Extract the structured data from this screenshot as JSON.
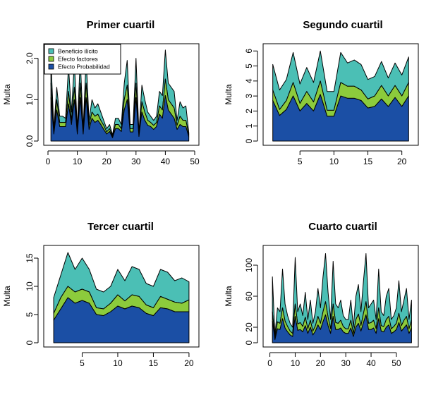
{
  "colors": {
    "beneficio": "#4BBFB5",
    "factores": "#8CCB3C",
    "probabilidad": "#1B4FA5",
    "axis": "#000000"
  },
  "legend": {
    "entries": [
      "Beneficio ilícito",
      "Efecto factores",
      "Efecto Probabilidad"
    ]
  },
  "chart_data": [
    {
      "type": "area",
      "stacked": true,
      "title": "Primer cuartil",
      "ylabel": "Multa",
      "xlabel": "",
      "xlim": [
        0,
        50
      ],
      "ylim": [
        0,
        2.25
      ],
      "xticks": [
        0,
        10,
        20,
        30,
        40,
        50
      ],
      "yticks": [
        0.0,
        1.0,
        2.0
      ],
      "ytick_labels": [
        "0.0",
        "1.0",
        "2.0"
      ],
      "legend_position": "top-left",
      "x": [
        1,
        2,
        3,
        4,
        5,
        6,
        7,
        8,
        9,
        10,
        11,
        12,
        13,
        14,
        15,
        16,
        17,
        18,
        19,
        20,
        21,
        22,
        23,
        24,
        25,
        26,
        27,
        28,
        29,
        30,
        31,
        32,
        33,
        34,
        35,
        36,
        37,
        38,
        39,
        40,
        41,
        42,
        43,
        44,
        45,
        46,
        47,
        48
      ],
      "totals": [
        2.0,
        0.3,
        1.3,
        0.6,
        0.6,
        0.55,
        1.8,
        0.7,
        1.9,
        0.3,
        2.0,
        0.3,
        2.0,
        0.5,
        1.0,
        0.8,
        0.9,
        0.7,
        0.5,
        0.3,
        0.4,
        0.15,
        0.55,
        0.55,
        0.4,
        1.4,
        1.95,
        0.4,
        0.4,
        2.0,
        0.2,
        1.35,
        1.0,
        0.7,
        0.6,
        0.5,
        0.6,
        1.2,
        1.1,
        2.2,
        1.4,
        1.3,
        1.2,
        0.5,
        0.95,
        0.8,
        0.85,
        0.2
      ],
      "series": [
        {
          "name": "Beneficio ilícito",
          "values": [
            0.6,
            0.08,
            0.3,
            0.15,
            0.15,
            0.1,
            0.6,
            0.2,
            0.6,
            0.08,
            0.6,
            0.08,
            0.6,
            0.12,
            0.3,
            0.2,
            0.25,
            0.2,
            0.12,
            0.08,
            0.1,
            0.04,
            0.15,
            0.15,
            0.1,
            0.4,
            0.6,
            0.1,
            0.1,
            0.6,
            0.05,
            0.4,
            0.3,
            0.2,
            0.15,
            0.12,
            0.15,
            0.35,
            0.35,
            0.7,
            0.4,
            0.4,
            0.4,
            0.12,
            0.35,
            0.3,
            0.35,
            0.05
          ]
        },
        {
          "name": "Efecto factores",
          "values": [
            0.35,
            0.05,
            0.25,
            0.1,
            0.1,
            0.1,
            0.3,
            0.1,
            0.3,
            0.05,
            0.35,
            0.05,
            0.35,
            0.1,
            0.15,
            0.15,
            0.15,
            0.1,
            0.1,
            0.05,
            0.07,
            0.03,
            0.1,
            0.1,
            0.07,
            0.25,
            0.35,
            0.08,
            0.08,
            0.35,
            0.04,
            0.25,
            0.2,
            0.12,
            0.1,
            0.1,
            0.1,
            0.2,
            0.2,
            0.4,
            0.25,
            0.25,
            0.25,
            0.1,
            0.2,
            0.15,
            0.15,
            0.05
          ]
        },
        {
          "name": "Efecto Probabilidad",
          "values": [
            1.05,
            0.17,
            0.75,
            0.35,
            0.35,
            0.35,
            0.9,
            0.4,
            1.0,
            0.17,
            1.05,
            0.17,
            1.05,
            0.28,
            0.55,
            0.45,
            0.5,
            0.4,
            0.28,
            0.17,
            0.23,
            0.08,
            0.3,
            0.3,
            0.23,
            0.75,
            1.0,
            0.22,
            0.22,
            1.05,
            0.11,
            0.7,
            0.5,
            0.38,
            0.35,
            0.28,
            0.35,
            0.65,
            0.55,
            1.1,
            0.75,
            0.65,
            0.55,
            0.28,
            0.4,
            0.35,
            0.35,
            0.1
          ]
        }
      ]
    },
    {
      "type": "area",
      "stacked": true,
      "title": "Segundo cuartil",
      "ylabel": "Multa",
      "xlabel": "",
      "xlim": [
        0.2,
        21.8
      ],
      "ylim": [
        0,
        6.2
      ],
      "xticks": [
        5,
        10,
        15,
        20
      ],
      "yticks": [
        0,
        1,
        2,
        3,
        4,
        5,
        6
      ],
      "ytick_labels": [
        "0",
        "1",
        "2",
        "3",
        "4",
        "5",
        "6"
      ],
      "x": [
        1,
        2,
        3,
        4,
        5,
        6,
        7,
        8,
        9,
        10,
        11,
        12,
        13,
        14,
        15,
        16,
        17,
        18,
        19,
        20,
        21
      ],
      "totals": [
        5.1,
        3.4,
        4.1,
        5.9,
        3.8,
        4.9,
        3.9,
        6.0,
        3.3,
        3.3,
        5.9,
        5.2,
        5.4,
        5.1,
        4.1,
        4.3,
        5.3,
        4.2,
        5.2,
        4.4,
        5.6
      ],
      "series": [
        {
          "name": "Beneficio ilícito",
          "values": [
            1.7,
            1.3,
            1.4,
            2.0,
            1.3,
            1.6,
            1.3,
            2.0,
            1.25,
            1.25,
            2.0,
            1.55,
            1.75,
            1.7,
            1.3,
            1.3,
            1.6,
            1.2,
            1.5,
            1.4,
            1.7
          ]
        },
        {
          "name": "Efecto factores",
          "values": [
            0.7,
            0.4,
            0.6,
            0.9,
            0.5,
            0.8,
            0.6,
            0.9,
            0.4,
            0.4,
            0.9,
            0.8,
            0.8,
            0.7,
            0.6,
            0.7,
            0.9,
            0.7,
            0.8,
            0.7,
            0.9
          ]
        },
        {
          "name": "Efecto Probabilidad",
          "values": [
            2.7,
            1.7,
            2.1,
            3.0,
            2.0,
            2.5,
            2.0,
            3.1,
            1.65,
            1.65,
            3.0,
            2.85,
            2.85,
            2.7,
            2.2,
            2.3,
            2.8,
            2.3,
            2.9,
            2.3,
            3.0
          ]
        }
      ]
    },
    {
      "type": "area",
      "stacked": true,
      "title": "Tercer cuartil",
      "ylabel": "Multa",
      "xlabel": "",
      "xlim": [
        0.2,
        20.8
      ],
      "ylim": [
        0,
        16.5
      ],
      "xticks": [
        5,
        10,
        15,
        20
      ],
      "yticks": [
        0,
        5,
        10,
        15
      ],
      "ytick_labels": [
        "0",
        "5",
        "10",
        "15"
      ],
      "x": [
        1,
        2,
        3,
        4,
        5,
        6,
        7,
        8,
        9,
        10,
        11,
        12,
        13,
        14,
        15,
        16,
        17,
        18,
        19,
        20
      ],
      "totals": [
        8.0,
        12.0,
        16.0,
        13.0,
        15.0,
        13.0,
        9.5,
        9.0,
        10.0,
        13.0,
        11.0,
        13.5,
        13.0,
        10.5,
        10.0,
        13.0,
        12.5,
        11.0,
        11.5,
        10.8
      ],
      "series": [
        {
          "name": "Beneficio ilícito",
          "values": [
            2.8,
            4.0,
            6.0,
            4.0,
            5.5,
            3.5,
            3.3,
            3.0,
            3.0,
            5.0,
            3.6,
            5.0,
            4.8,
            3.8,
            3.8,
            4.8,
            4.8,
            3.8,
            4.5,
            3.2
          ]
        },
        {
          "name": "Efecto factores",
          "values": [
            1.2,
            2.0,
            2.0,
            2.0,
            2.0,
            2.0,
            1.2,
            1.2,
            1.5,
            2.0,
            1.4,
            2.0,
            2.0,
            1.5,
            1.4,
            2.0,
            1.7,
            1.7,
            1.5,
            2.1
          ]
        },
        {
          "name": "Efecto Probabilidad",
          "values": [
            4.0,
            6.0,
            8.0,
            7.0,
            7.5,
            7.0,
            5.0,
            4.8,
            5.5,
            6.5,
            6.0,
            6.5,
            6.2,
            5.2,
            4.8,
            6.2,
            6.0,
            5.5,
            5.5,
            5.5
          ]
        }
      ]
    },
    {
      "type": "area",
      "stacked": true,
      "title": "Cuarto cuartil",
      "ylabel": "Multa",
      "xlabel": "",
      "xlim": [
        -1,
        57
      ],
      "ylim": [
        0,
        120
      ],
      "xticks": [
        0,
        10,
        20,
        30,
        40,
        50
      ],
      "yticks": [
        0,
        20,
        60,
        100
      ],
      "ytick_labels": [
        "0",
        "20",
        "60",
        "100"
      ],
      "x": [
        1,
        2,
        3,
        4,
        5,
        6,
        7,
        8,
        9,
        10,
        11,
        12,
        13,
        14,
        15,
        16,
        17,
        18,
        19,
        20,
        21,
        22,
        23,
        24,
        25,
        26,
        27,
        28,
        29,
        30,
        31,
        32,
        33,
        34,
        35,
        36,
        37,
        38,
        39,
        40,
        41,
        42,
        43,
        44,
        45,
        46,
        47,
        48,
        49,
        50,
        51,
        52,
        53,
        54,
        55,
        56
      ],
      "totals": [
        85,
        10,
        45,
        40,
        95,
        50,
        35,
        25,
        20,
        110,
        40,
        50,
        35,
        65,
        30,
        55,
        25,
        40,
        70,
        45,
        85,
        115,
        65,
        30,
        105,
        50,
        45,
        55,
        35,
        30,
        30,
        55,
        20,
        60,
        75,
        40,
        80,
        115,
        45,
        50,
        55,
        30,
        95,
        40,
        35,
        60,
        70,
        30,
        35,
        45,
        80,
        40,
        55,
        70,
        30,
        55
      ],
      "series": [
        {
          "name": "Beneficio ilícito",
          "values": [
            45,
            4,
            18,
            15,
            50,
            22,
            14,
            10,
            8,
            60,
            16,
            24,
            14,
            32,
            12,
            26,
            10,
            18,
            36,
            20,
            45,
            62,
            32,
            12,
            55,
            24,
            20,
            26,
            14,
            12,
            12,
            26,
            8,
            30,
            38,
            18,
            42,
            62,
            20,
            24,
            26,
            12,
            50,
            18,
            14,
            30,
            36,
            12,
            14,
            20,
            42,
            18,
            26,
            36,
            12,
            26
          ]
        },
        {
          "name": "Efecto factores",
          "values": [
            12,
            2,
            9,
            8,
            14,
            9,
            7,
            5,
            4,
            16,
            8,
            9,
            7,
            11,
            6,
            9,
            5,
            7,
            11,
            8,
            13,
            17,
            11,
            6,
            16,
            9,
            8,
            10,
            7,
            6,
            6,
            10,
            4,
            10,
            12,
            7,
            12,
            17,
            8,
            9,
            10,
            6,
            14,
            7,
            7,
            10,
            11,
            6,
            7,
            8,
            12,
            7,
            10,
            11,
            6,
            10
          ]
        },
        {
          "name": "Efecto Probabilidad",
          "values": [
            28,
            4,
            18,
            17,
            31,
            19,
            14,
            10,
            8,
            34,
            16,
            17,
            14,
            22,
            12,
            20,
            10,
            15,
            23,
            17,
            27,
            36,
            22,
            12,
            34,
            17,
            17,
            19,
            14,
            12,
            12,
            19,
            8,
            20,
            25,
            15,
            26,
            36,
            17,
            17,
            19,
            12,
            31,
            15,
            14,
            20,
            23,
            12,
            14,
            17,
            26,
            15,
            19,
            23,
            12,
            19
          ]
        }
      ]
    }
  ]
}
